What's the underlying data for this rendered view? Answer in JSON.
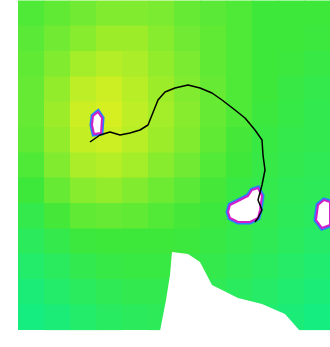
{
  "chart_data": {
    "type": "heatmap",
    "xlim": [
      0,
      330
    ],
    "ylim": [
      0,
      347
    ],
    "tick_labels": false,
    "x": [
      31,
      57,
      83,
      109,
      135,
      161,
      187,
      213,
      239,
      265,
      291,
      317
    ],
    "y": [
      13,
      38,
      64,
      89,
      114,
      140,
      165,
      190,
      216,
      241,
      266,
      292,
      317
    ],
    "colorbar_range": [
      0,
      1
    ],
    "cells": [
      [
        0.55,
        0.6,
        0.65,
        0.7,
        0.7,
        0.68,
        0.62,
        0.58,
        0.55,
        0.5,
        0.5,
        0.5
      ],
      [
        0.58,
        0.65,
        0.72,
        0.78,
        0.78,
        0.72,
        0.65,
        0.6,
        0.55,
        0.5,
        0.5,
        0.48
      ],
      [
        0.6,
        0.7,
        0.8,
        0.85,
        0.82,
        0.75,
        0.68,
        0.6,
        0.55,
        0.5,
        0.48,
        0.45
      ],
      [
        0.62,
        0.75,
        0.88,
        0.92,
        0.86,
        0.78,
        0.7,
        0.62,
        0.55,
        0.5,
        0.45,
        0.42
      ],
      [
        0.62,
        0.78,
        0.92,
        0.95,
        0.88,
        0.8,
        0.72,
        0.62,
        0.55,
        0.48,
        0.44,
        0.4
      ],
      [
        0.6,
        0.75,
        0.9,
        0.92,
        0.86,
        0.78,
        0.7,
        0.6,
        0.52,
        0.46,
        0.42,
        0.4
      ],
      [
        0.55,
        0.7,
        0.82,
        0.85,
        0.8,
        0.72,
        0.65,
        0.56,
        0.5,
        0.44,
        0.4,
        0.38
      ],
      [
        0.5,
        0.62,
        0.72,
        0.75,
        0.7,
        0.64,
        0.58,
        0.52,
        0.46,
        0.42,
        0.38,
        0.36
      ],
      [
        0.42,
        0.52,
        0.6,
        0.62,
        0.6,
        0.56,
        0.52,
        0.48,
        0.44,
        0.4,
        0.36,
        0.34
      ],
      [
        0.35,
        0.42,
        0.48,
        0.5,
        0.5,
        0.5,
        0.48,
        0.45,
        0.42,
        0.38,
        0.34,
        0.3
      ],
      [
        0.28,
        0.34,
        0.4,
        0.44,
        0.46,
        0.46,
        0.44,
        0.42,
        0.38,
        0.34,
        0.3,
        0.26
      ],
      [
        0.22,
        0.28,
        0.34,
        0.38,
        0.4,
        0.4,
        0.4,
        0.38,
        0.34,
        0.3,
        0.26,
        0.22
      ],
      [
        0.18,
        0.22,
        0.28,
        0.32,
        0.35,
        0.36,
        0.36,
        0.34,
        0.3,
        0.26,
        0.22,
        0.18
      ]
    ],
    "obstacles": [
      {
        "color": "#ffffff",
        "line_style": "solid",
        "points": [
          [
            93,
            116
          ],
          [
            98,
            112
          ],
          [
            102,
            118
          ],
          [
            101,
            133
          ],
          [
            94,
            134
          ],
          [
            92,
            125
          ]
        ]
      },
      {
        "color": "#ffffff",
        "line_style": "solid",
        "points": [
          [
            230,
            205
          ],
          [
            240,
            200
          ],
          [
            248,
            196
          ],
          [
            252,
            190
          ],
          [
            258,
            188
          ],
          [
            262,
            196
          ],
          [
            260,
            210
          ],
          [
            258,
            218
          ],
          [
            250,
            222
          ],
          [
            238,
            222
          ],
          [
            230,
            218
          ],
          [
            228,
            212
          ]
        ]
      },
      {
        "color": "#ffffff",
        "line_style": "solid",
        "points": [
          [
            318,
            205
          ],
          [
            324,
            200
          ],
          [
            330,
            202
          ],
          [
            330,
            225
          ],
          [
            322,
            228
          ],
          [
            316,
            220
          ]
        ]
      },
      {
        "color": "#ffffff",
        "line_style": "none",
        "points": [
          [
            172,
            252
          ],
          [
            188,
            254
          ],
          [
            200,
            262
          ],
          [
            212,
            285
          ],
          [
            238,
            298
          ],
          [
            262,
            304
          ],
          [
            285,
            314
          ],
          [
            300,
            331
          ],
          [
            160,
            331
          ],
          [
            166,
            300
          ],
          [
            170,
            275
          ]
        ]
      }
    ],
    "path": {
      "type": "line",
      "color": "#000000",
      "x": [
        90,
        100,
        110,
        120,
        130,
        140,
        148,
        152,
        158,
        165,
        175,
        188,
        200,
        212,
        222,
        235,
        245,
        255,
        262,
        263,
        265,
        262,
        258,
        262,
        258,
        255
      ],
      "y": [
        142,
        135,
        132,
        135,
        133,
        130,
        125,
        115,
        100,
        92,
        88,
        85,
        88,
        93,
        100,
        110,
        118,
        130,
        140,
        155,
        170,
        185,
        200,
        210,
        218,
        222
      ]
    }
  }
}
